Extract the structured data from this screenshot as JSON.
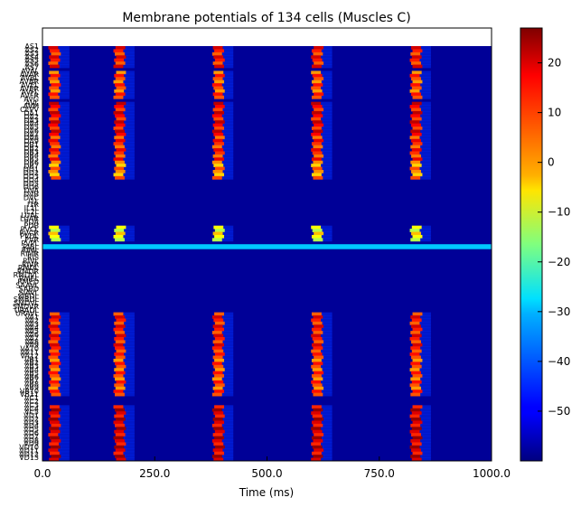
{
  "chart_data": {
    "type": "heatmap",
    "title": "Membrane potentials of 134 cells (Muscles C)",
    "xlabel": "Time (ms)",
    "ylabel": "",
    "xlim": [
      0,
      1000
    ],
    "x_ticks": [
      "0.0",
      "250.0",
      "500.0",
      "750.0",
      "1000.0"
    ],
    "colorbar": {
      "min": -60,
      "max": 27,
      "ticks": [
        "20",
        "10",
        "0",
        "−10",
        "−20",
        "−30",
        "−40",
        "−50"
      ],
      "colormap": "jet"
    },
    "n_cells": 134,
    "baseline_mV": -58,
    "burst_times_ms": [
      15,
      160,
      380,
      600,
      820
    ],
    "burst_width_ms": 20,
    "tonic_cell_mV": -32,
    "cell_labels_visible": [
      "AS1",
      "AS2",
      "AS3",
      "AS4",
      "AS5",
      "AS6",
      "AS7",
      "AVAL",
      "AVAR",
      "AVBL",
      "AVBR",
      "AVEL",
      "AVER",
      "AVFL",
      "AVFR",
      "AVG",
      "AVL",
      "AVM",
      "CEPV",
      "DA1",
      "DA2",
      "DA3",
      "DA4",
      "DA5",
      "DA6",
      "DA7",
      "DA8",
      "DA9",
      "DB1",
      "DB2",
      "DB3",
      "DB4",
      "DB5",
      "DB6",
      "DB7",
      "DD1",
      "DD2",
      "DD3",
      "DD4",
      "DD5",
      "DD6",
      "DVA",
      "DVB",
      "DVC",
      "I1L",
      "I1R",
      "IL1L",
      "IL2L",
      "LUAL",
      "LUAR",
      "PDA",
      "PDB",
      "PVCL",
      "PVCR",
      "PVDL",
      "PVR",
      "PVPL",
      "RIBL",
      "RIML",
      "RIMR",
      "RIS",
      "RIVL",
      "RIVR",
      "RMDL",
      "RMDR",
      "RMDVL",
      "RMEL",
      "RMED",
      "SAAVL",
      "SABD",
      "SIAVL",
      "SIBDL",
      "SMBDL",
      "SMDVL",
      "SMDVR",
      "URADL",
      "URAVL",
      "VA1",
      "VA2",
      "VA3",
      "VA4",
      "VA5",
      "VA6",
      "VA7",
      "VA8",
      "VA9",
      "VA10",
      "VA11",
      "VA12",
      "VB1",
      "VB2",
      "VB3",
      "VB4",
      "VB5",
      "VB6",
      "VB7",
      "VB8",
      "VB9",
      "VB10",
      "VB11",
      "VC1",
      "VC2",
      "VC3",
      "VC4",
      "VC5",
      "VD1",
      "VD2",
      "VD3",
      "VD4",
      "VD5",
      "VD6",
      "VD7",
      "VD8",
      "VD9",
      "VD10",
      "VD11",
      "VD12",
      "VD13"
    ],
    "active_cell_groups": [
      {
        "name": "AS",
        "rows": [
          0,
          6
        ],
        "peak_mV": 20
      },
      {
        "name": "AV",
        "rows": [
          8,
          16
        ],
        "peak_mV": 15
      },
      {
        "name": "DA",
        "rows": [
          18,
          28
        ],
        "peak_mV": 22
      },
      {
        "name": "DB",
        "rows": [
          29,
          36
        ],
        "peak_mV": 18
      },
      {
        "name": "DD",
        "rows": [
          37,
          42
        ],
        "peak_mV": 10
      },
      {
        "name": "RI",
        "rows": [
          58,
          62
        ],
        "peak_mV": 0
      },
      {
        "name": "VA",
        "rows": [
          86,
          98
        ],
        "peak_mV": 20
      },
      {
        "name": "VB",
        "rows": [
          99,
          112
        ],
        "peak_mV": 15
      },
      {
        "name": "VD",
        "rows": [
          116,
          133
        ],
        "peak_mV": 25
      }
    ]
  }
}
